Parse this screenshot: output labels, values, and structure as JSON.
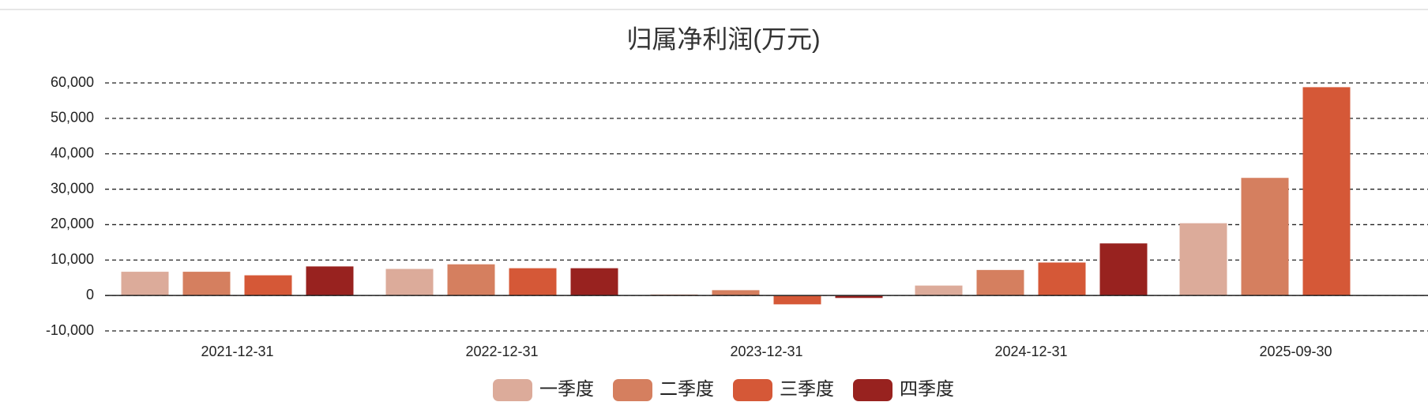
{
  "chart_data": {
    "type": "bar",
    "title": "归属净利润(万元)",
    "categories": [
      "2021-12-31",
      "2022-12-31",
      "2023-12-31",
      "2024-12-31",
      "2025-09-30"
    ],
    "series": [
      {
        "name": "一季度",
        "color": "#dcab9a",
        "values": [
          6700,
          7500,
          300,
          2800,
          20400
        ]
      },
      {
        "name": "二季度",
        "color": "#d57f5f",
        "values": [
          6700,
          8800,
          1500,
          7200,
          33200
        ]
      },
      {
        "name": "三季度",
        "color": "#d55837",
        "values": [
          5700,
          7700,
          -2500,
          9300,
          58800
        ]
      },
      {
        "name": "四季度",
        "color": "#98221f",
        "values": [
          8200,
          7700,
          -700,
          14700,
          null
        ]
      }
    ],
    "ylim": [
      -10000,
      60000
    ],
    "yticks": [
      {
        "value": -10000,
        "label": "-10,000"
      },
      0,
      {
        "value": 10000,
        "label": "10,000"
      },
      {
        "value": 20000,
        "label": "20,000"
      },
      {
        "value": 30000,
        "label": "30,000"
      },
      {
        "value": 40000,
        "label": "40,000"
      },
      {
        "value": 50000,
        "label": "50,000"
      },
      {
        "value": 60000,
        "label": "60,000"
      }
    ],
    "grid": true
  }
}
